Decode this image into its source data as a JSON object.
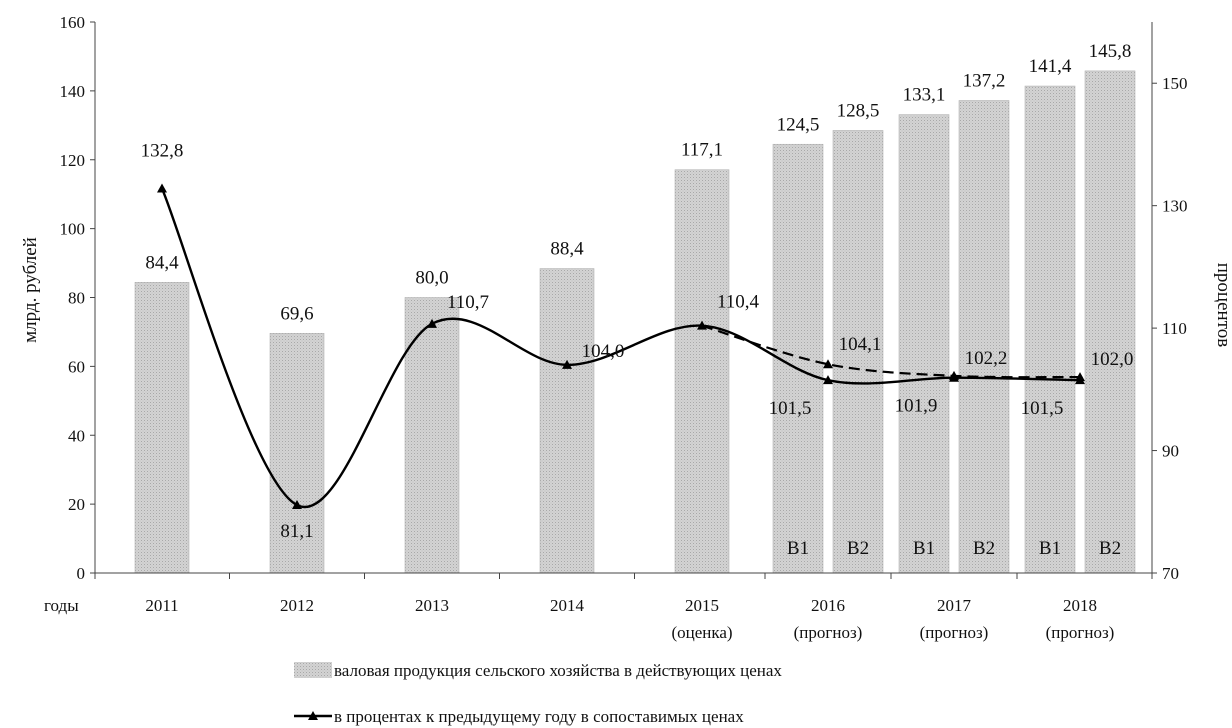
{
  "chart_data": {
    "type": "bar",
    "ylabel_left": "млрд. рублей",
    "ylabel_right": "процентов",
    "ylim_left": [
      0,
      160
    ],
    "yticks_left": [
      0,
      20,
      40,
      60,
      80,
      100,
      120,
      140,
      160
    ],
    "ylim_right": [
      70,
      160
    ],
    "yticks_right": [
      70,
      90,
      110,
      130,
      150
    ],
    "x_prefix_label": "годы",
    "grid": false,
    "legend_position": "bottom",
    "categories": [
      {
        "year": "2011",
        "sub": ""
      },
      {
        "year": "2012",
        "sub": ""
      },
      {
        "year": "2013",
        "sub": ""
      },
      {
        "year": "2014",
        "sub": ""
      },
      {
        "year": "2015",
        "sub": "(оценка)"
      },
      {
        "year": "2016",
        "sub": "(прогноз)"
      },
      {
        "year": "2017",
        "sub": "(прогноз)"
      },
      {
        "year": "2018",
        "sub": "(прогноз)"
      }
    ],
    "bars": [
      {
        "category": "2011",
        "value": 84.4,
        "label": "84,4",
        "inner": ""
      },
      {
        "category": "2012",
        "value": 69.6,
        "label": "69,6",
        "inner": ""
      },
      {
        "category": "2013",
        "value": 80.0,
        "label": "80,0",
        "inner": ""
      },
      {
        "category": "2014",
        "value": 88.4,
        "label": "88,4",
        "inner": ""
      },
      {
        "category": "2015",
        "value": 117.1,
        "label": "117,1",
        "inner": ""
      },
      {
        "category": "2016",
        "value": 124.5,
        "label": "124,5",
        "inner": "В1"
      },
      {
        "category": "2016",
        "value": 128.5,
        "label": "128,5",
        "inner": "В2"
      },
      {
        "category": "2017",
        "value": 133.1,
        "label": "133,1",
        "inner": "В1"
      },
      {
        "category": "2017",
        "value": 137.2,
        "label": "137,2",
        "inner": "В2"
      },
      {
        "category": "2018",
        "value": 141.4,
        "label": "141,4",
        "inner": "В1"
      },
      {
        "category": "2018",
        "value": 145.8,
        "label": "145,8",
        "inner": "В2"
      }
    ],
    "line_v1": {
      "style": "solid",
      "points": [
        {
          "category": "2011",
          "value": 132.8,
          "label": "132,8"
        },
        {
          "category": "2012",
          "value": 81.1,
          "label": "81,1"
        },
        {
          "category": "2013",
          "value": 110.7,
          "label": "110,7"
        },
        {
          "category": "2014",
          "value": 104.0,
          "label": "104,0"
        },
        {
          "category": "2015",
          "value": 110.4,
          "label": "110,4"
        },
        {
          "category": "2016",
          "value": 101.5,
          "label": "101,5"
        },
        {
          "category": "2017",
          "value": 101.9,
          "label": "101,9"
        },
        {
          "category": "2018",
          "value": 101.5,
          "label": "101,5"
        }
      ]
    },
    "line_v2": {
      "style": "dashed",
      "points": [
        {
          "category": "2015",
          "value": 110.4,
          "label": ""
        },
        {
          "category": "2016",
          "value": 104.1,
          "label": "104,1"
        },
        {
          "category": "2017",
          "value": 102.2,
          "label": "102,2"
        },
        {
          "category": "2018",
          "value": 102.0,
          "label": "102,0"
        }
      ]
    },
    "legend": [
      {
        "kind": "bar",
        "text": "валовая продукция сельского хозяйства в действующих ценах"
      },
      {
        "kind": "line",
        "text": "в процентах к предыдущему году в сопоставимых ценах"
      }
    ],
    "colors": {
      "bar": "#c8c8c8",
      "bar_edge": "#b2b2b2",
      "line": "#000000",
      "axis": "#444444"
    }
  }
}
